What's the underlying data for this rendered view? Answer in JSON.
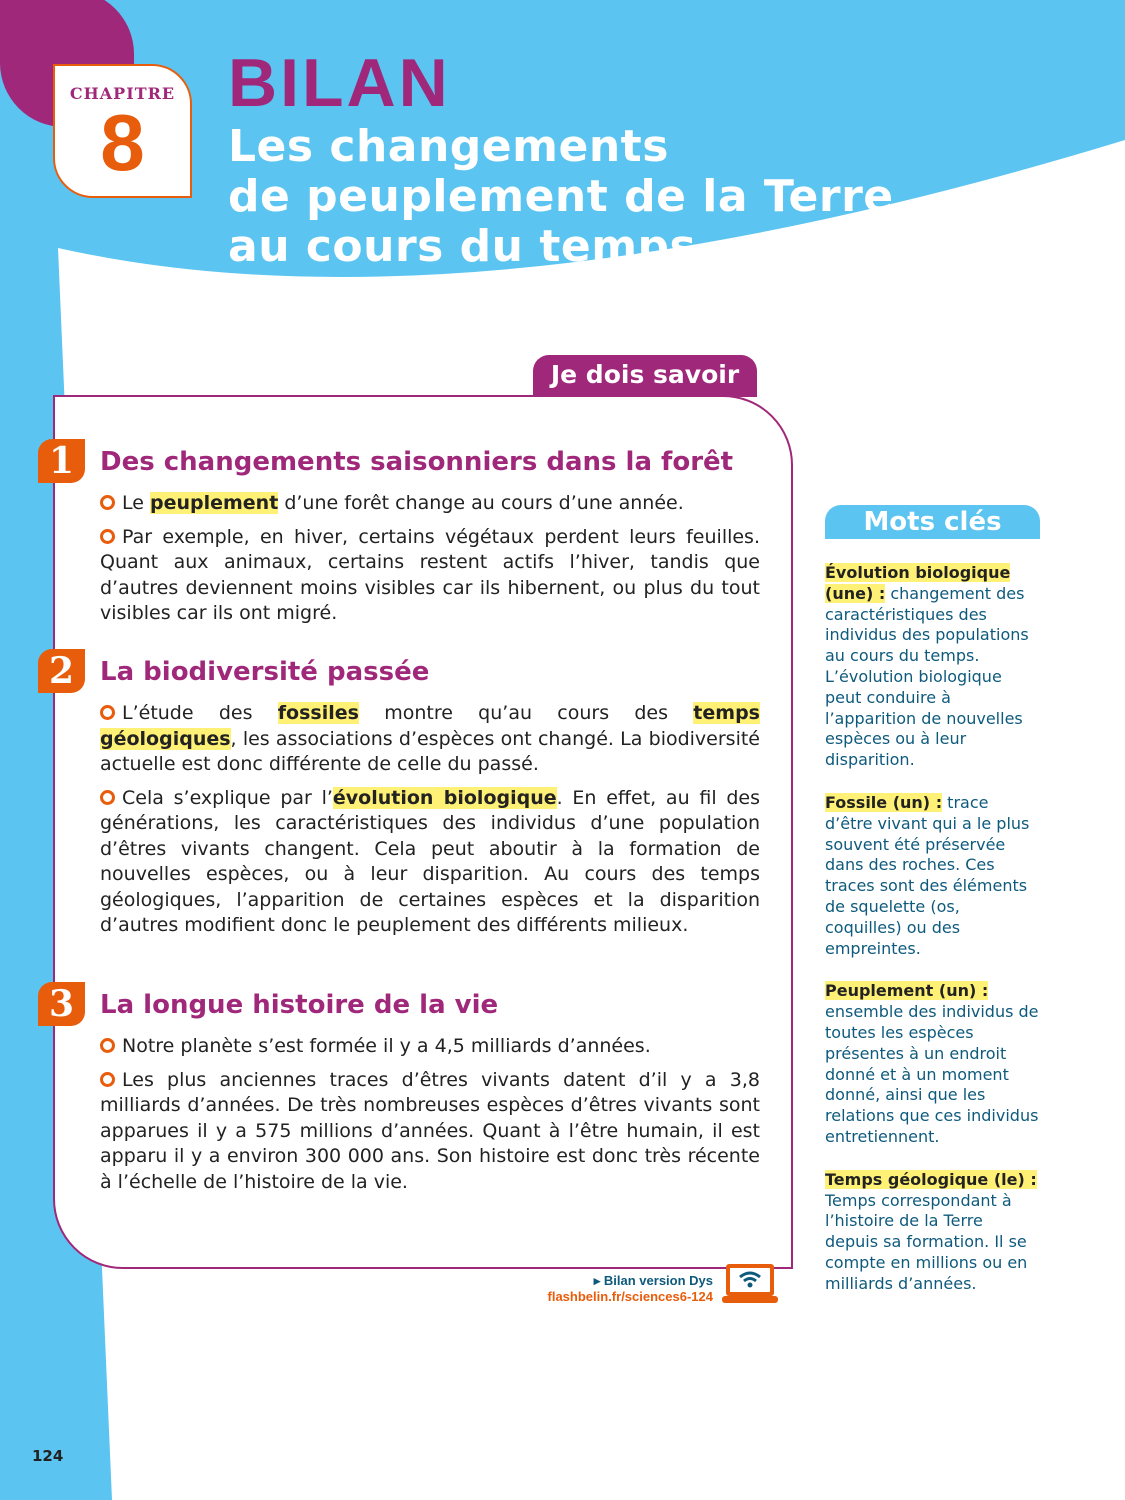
{
  "header": {
    "chapter_label": "CHAPITRE",
    "chapter_number": "8",
    "kicker": "BILAN",
    "title_lines": [
      "Les changements",
      "de peuplement de la Terre",
      "au cours du temps"
    ]
  },
  "colors": {
    "blue": "#5bc4f1",
    "purple": "#a0287a",
    "orange": "#e85d0c",
    "teal": "#0e5a7d",
    "highlight": "#fff176"
  },
  "main": {
    "tab": "Je dois savoir",
    "sections": [
      {
        "number": "1",
        "heading": "Des changements saisonniers dans la forêt",
        "paragraphs": [
          [
            {
              "t": "Le "
            },
            {
              "t": "peuplement",
              "hl": true
            },
            {
              "t": " d’une forêt change au cours d’une année."
            }
          ],
          [
            {
              "t": "Par exemple, en hiver, certains végétaux perdent leurs feuilles. Quant aux animaux, certains restent actifs l’hiver, tandis que d’autres deviennent moins visibles car ils hibernent, ou plus du tout visibles car ils ont migré."
            }
          ]
        ]
      },
      {
        "number": "2",
        "heading": "La biodiversité passée",
        "paragraphs": [
          [
            {
              "t": "L’étude des "
            },
            {
              "t": "fossiles",
              "hl": true
            },
            {
              "t": " montre qu’au cours des "
            },
            {
              "t": "temps géologiques",
              "hl": true
            },
            {
              "t": ", les associations d’espèces ont changé. La biodiversité actuelle est donc différente de celle du passé."
            }
          ],
          [
            {
              "t": "Cela s’explique par l’"
            },
            {
              "t": "évolution biologique",
              "hl": true
            },
            {
              "t": ". En effet, au fil des générations, les caractéristiques des individus d’une population d’êtres vivants changent. Cela peut aboutir à la formation de nouvelles espèces, ou à leur disparition. Au cours des temps géologiques, l’apparition de certaines espèces et la disparition d’autres modifient donc le peuplement des différents milieux."
            }
          ]
        ]
      },
      {
        "number": "3",
        "heading": "La longue histoire de la vie",
        "paragraphs": [
          [
            {
              "t": "Notre planète s’est formée il y a 4,5 milliards d’années."
            }
          ],
          [
            {
              "t": "Les plus anciennes traces d’êtres vivants datent d’il y a 3,8 milliards d’années. De très nombreuses espèces d’êtres vivants sont apparues il y a 575 millions d’années. Quant à l’être humain, il est apparu il y a environ 300 000 ans. Son histoire est donc très récente à l’échelle de l’histoire de la vie."
            }
          ]
        ]
      }
    ]
  },
  "keywords": {
    "title": "Mots clés",
    "items": [
      {
        "term": "Évolution biologique (une) :",
        "def": " changement des caractéristiques des individus des populations au cours du temps. L’évolution biologique peut conduire à l’apparition de nouvelles espèces ou à leur disparition."
      },
      {
        "term": "Fossile (un) :",
        "def": " trace d’être vivant qui a le plus souvent été préservée dans des roches. Ces traces sont des éléments de squelette (os, coquilles) ou des empreintes."
      },
      {
        "term": "Peuplement (un) :",
        "def": " ensemble des individus de toutes les espèces présentes à un endroit donné et à un moment donné, ainsi que les relations que ces individus entretiennent."
      },
      {
        "term": "Temps géologique (le) :",
        "def": " Temps correspondant à l’histoire de la Terre depuis sa formation. Il se compte en millions ou en milliards d’années."
      }
    ]
  },
  "footer": {
    "link_label": "▸ Bilan version Dys",
    "link_url": "flashbelin.fr/sciences6-124",
    "icon": "laptop-wifi-icon",
    "page_number": "124"
  }
}
